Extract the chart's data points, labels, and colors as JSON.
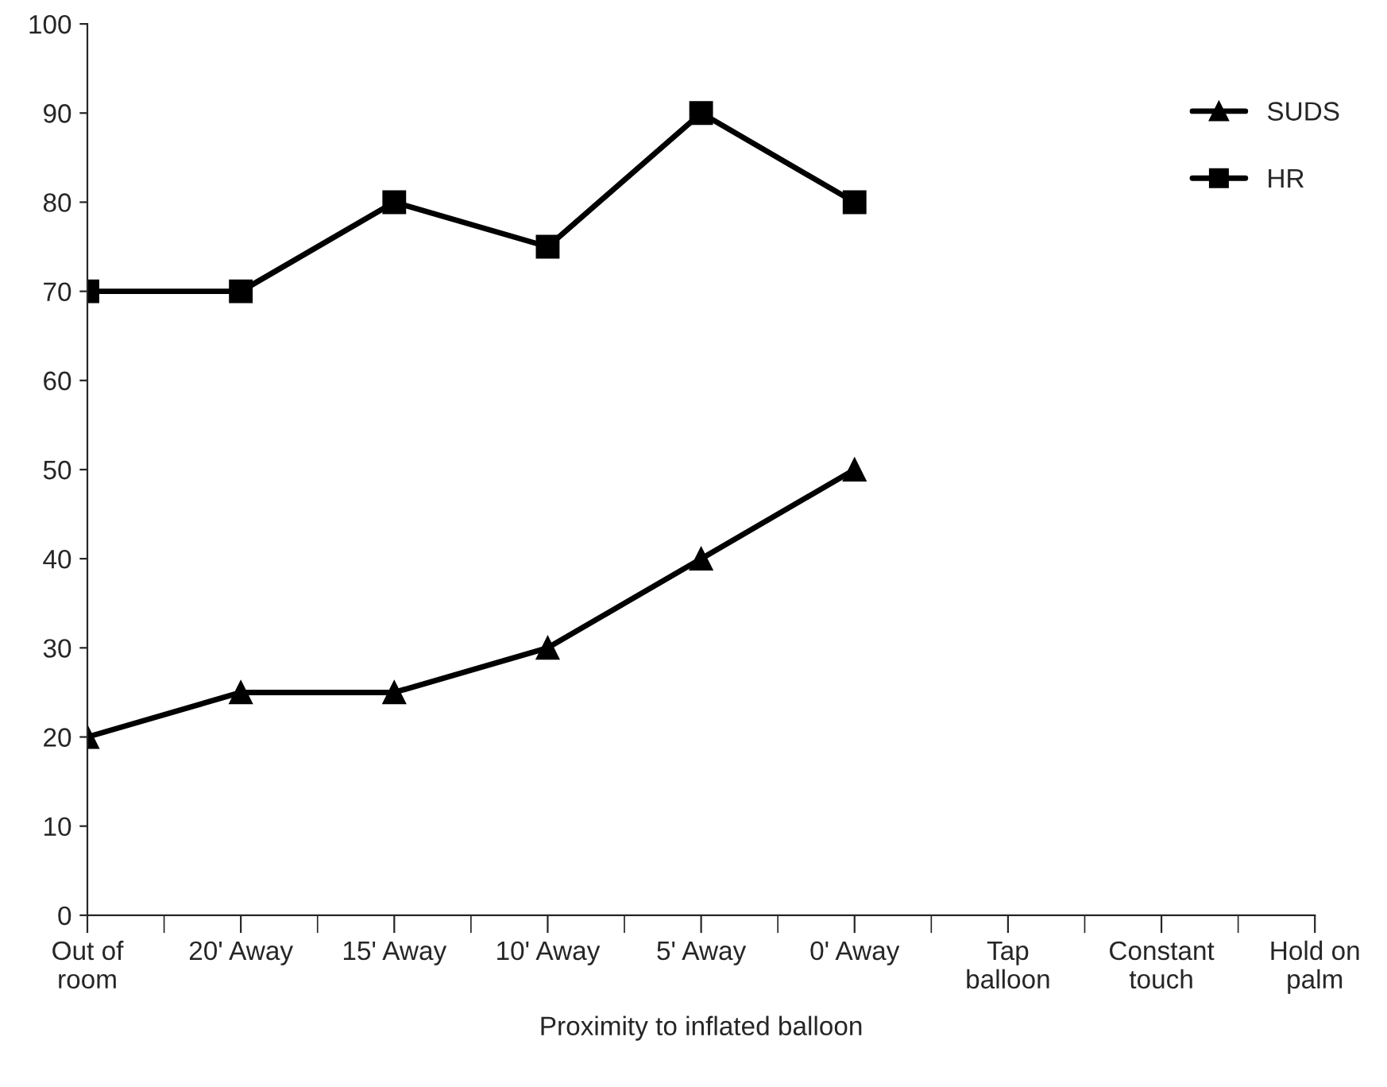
{
  "chart_data": {
    "type": "line",
    "xlabel": "Proximity to inflated balloon",
    "categories": [
      "Out of\nroom",
      "20' Away",
      "15' Away",
      "10' Away",
      "5' Away",
      "0' Away",
      "Tap\nballoon",
      "Constant\ntouch",
      "Hold on\npalm"
    ],
    "series": [
      {
        "name": "SUDS",
        "color": "#000000",
        "marker": "triangle",
        "values": [
          20,
          25,
          25,
          30,
          40,
          50,
          null,
          null,
          null
        ]
      },
      {
        "name": "HR",
        "color": "#000000",
        "marker": "square",
        "values": [
          70,
          70,
          80,
          75,
          90,
          80,
          null,
          null,
          null
        ]
      }
    ],
    "ylim": [
      0,
      100
    ],
    "yticks": [
      0,
      10,
      20,
      30,
      40,
      50,
      60,
      70,
      80,
      90,
      100
    ],
    "grid": false,
    "legend": "top right",
    "line_style": "solid"
  }
}
